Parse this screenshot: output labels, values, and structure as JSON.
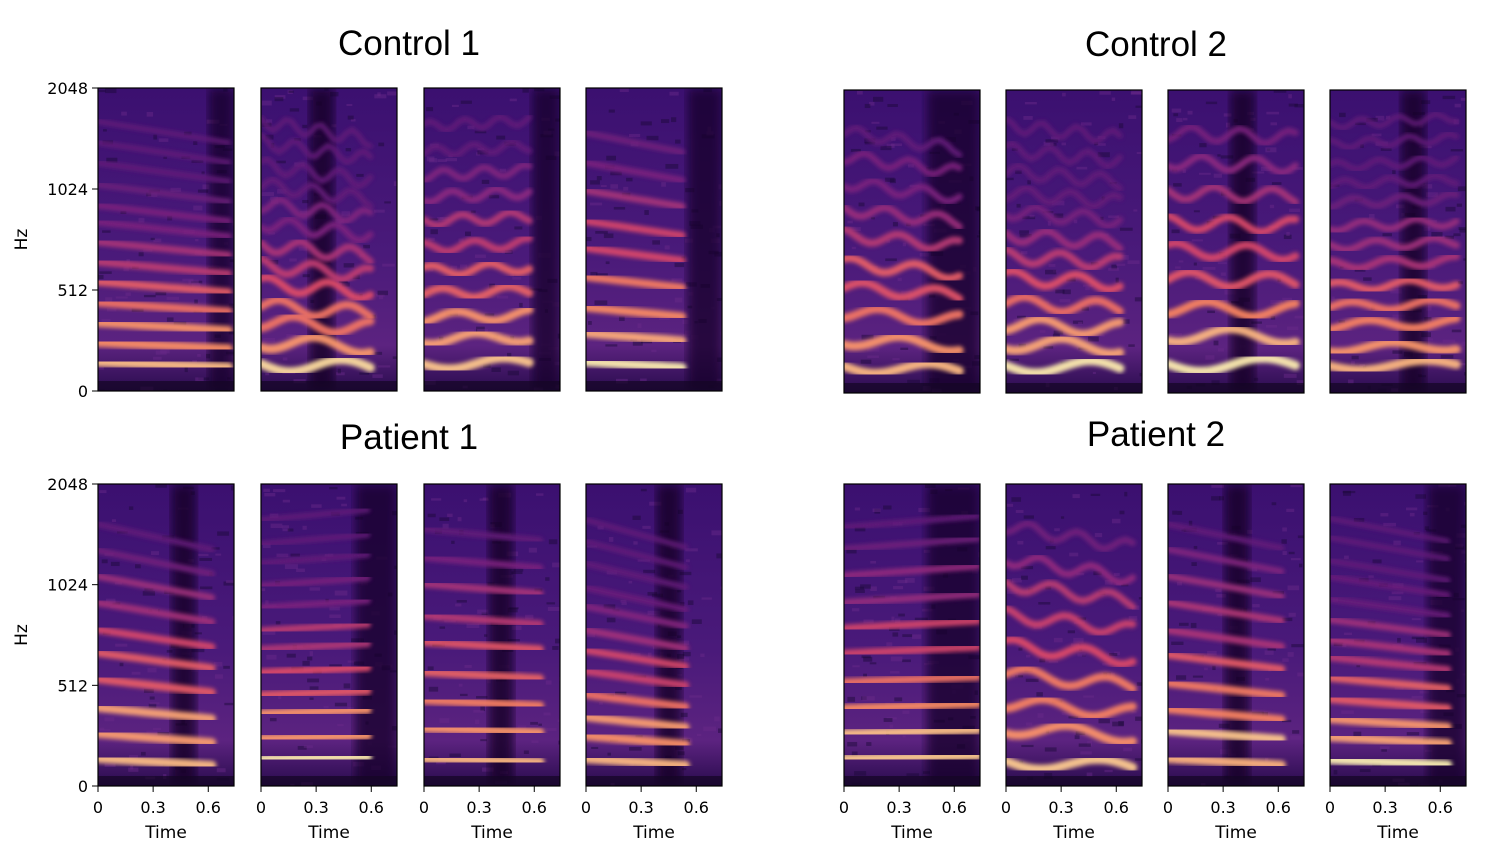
{
  "chart_data": {
    "type": "heatmap",
    "y_ticks": [
      "0",
      "512",
      "1024",
      "2048"
    ],
    "x_ticks": [
      "0",
      "0.3",
      "0.6"
    ],
    "x_tick_values": [
      0,
      0.3,
      0.6
    ],
    "xlim": [
      0,
      0.74
    ],
    "ylabel": "Hz",
    "xlabel": "Time",
    "colormap": "magma",
    "colors": {
      "low": "#000004",
      "mid": "#b5367a",
      "high": "#fcfdbf"
    },
    "groups": [
      {
        "title": "Control 1",
        "position": "top-left",
        "panels": 4
      },
      {
        "title": "Control 2",
        "position": "top-right",
        "panels": 4
      },
      {
        "title": "Patient 1",
        "position": "bottom-left",
        "panels": 4
      },
      {
        "title": "Patient 2",
        "position": "bottom-right",
        "panels": 4
      }
    ]
  }
}
